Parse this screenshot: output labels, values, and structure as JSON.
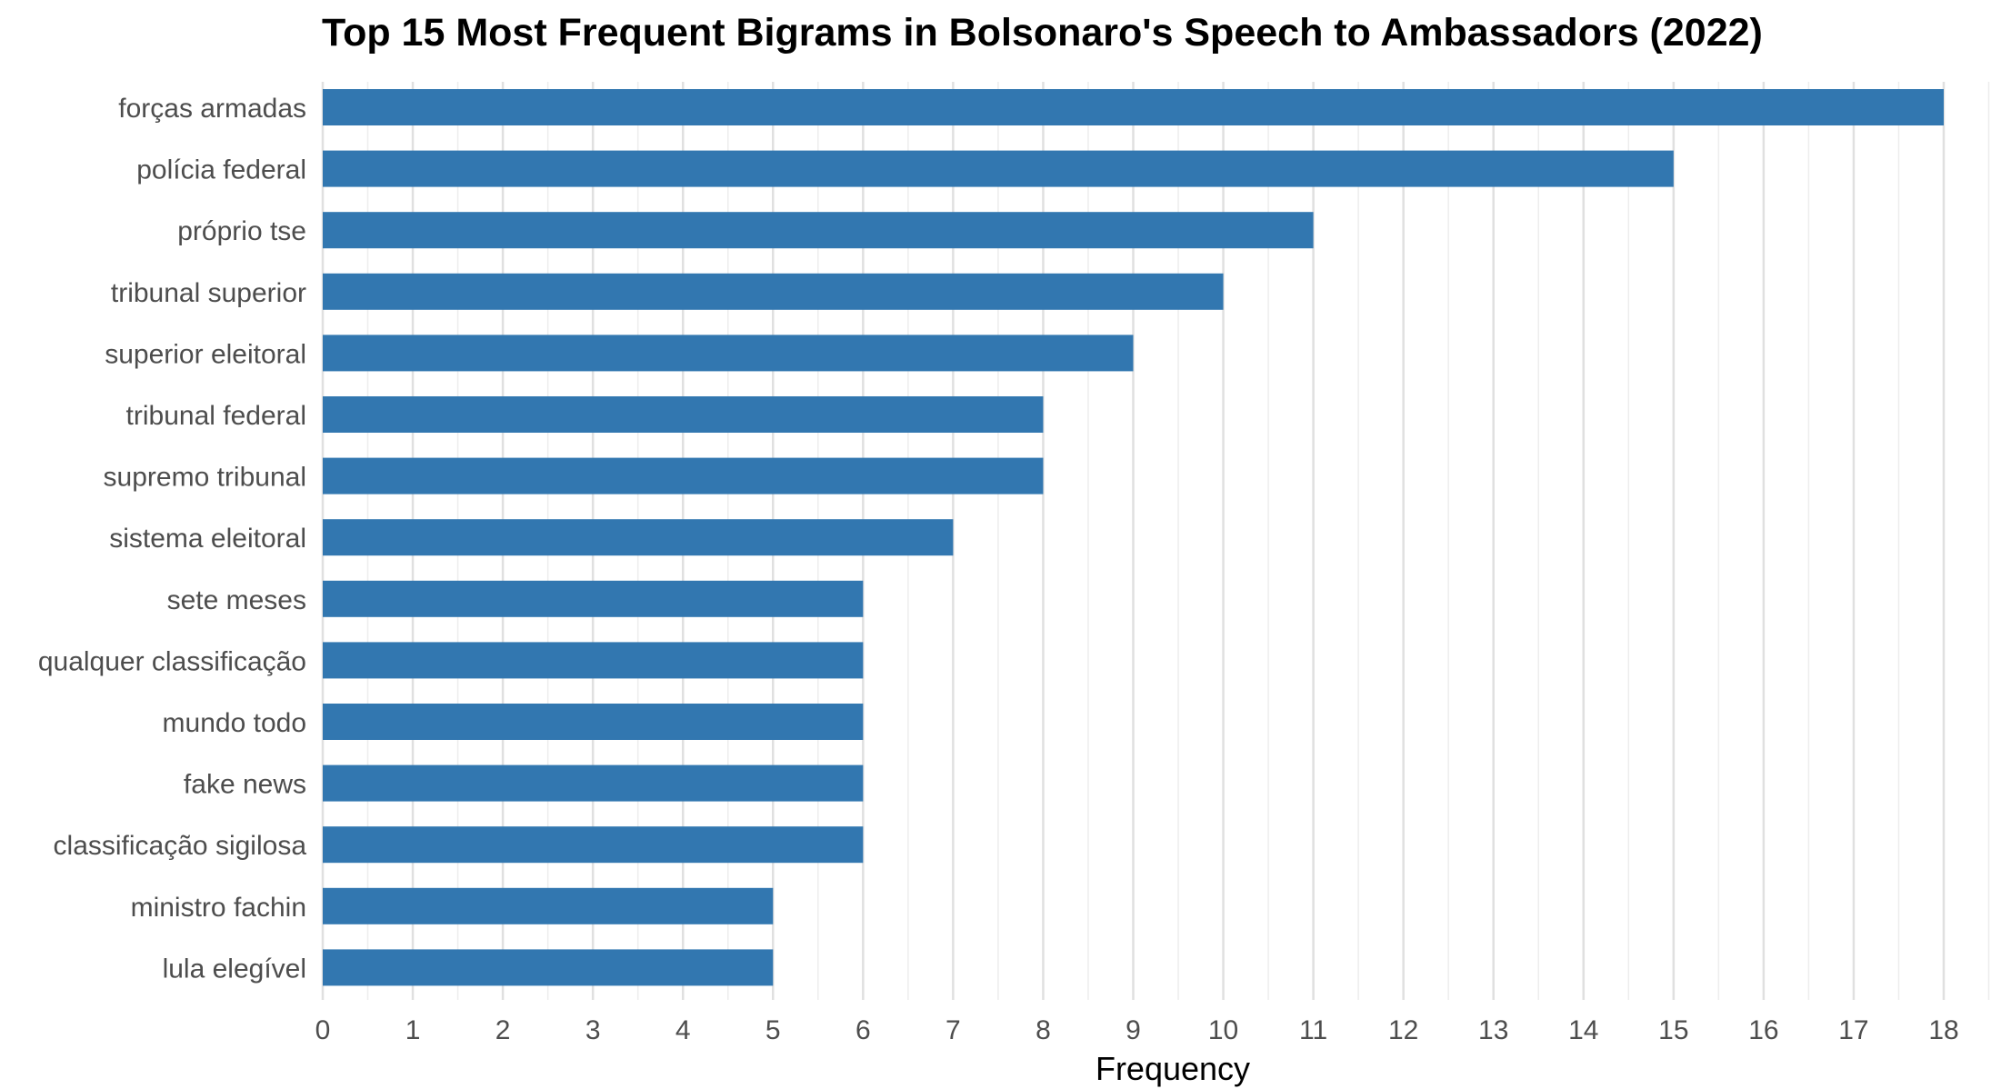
{
  "chart_data": {
    "type": "bar",
    "orientation": "horizontal",
    "title": "Top 15 Most Frequent Bigrams in Bolsonaro's Speech to Ambassadors (2022)",
    "xlabel": "Frequency",
    "ylabel": "",
    "xlim": [
      0,
      18
    ],
    "x_ticks": [
      "0",
      "1",
      "2",
      "3",
      "4",
      "5",
      "6",
      "7",
      "8",
      "9",
      "10",
      "11",
      "12",
      "13",
      "14",
      "15",
      "16",
      "17",
      "18"
    ],
    "grid": true,
    "bar_color": "#3277b0",
    "categories": [
      "forças armadas",
      "polícia federal",
      "próprio tse",
      "tribunal superior",
      "superior eleitoral",
      "tribunal federal",
      "supremo tribunal",
      "sistema eleitoral",
      "sete meses",
      "qualquer classificação",
      "mundo todo",
      "fake news",
      "classificação sigilosa",
      "ministro fachin",
      "lula elegível"
    ],
    "values": [
      18,
      15,
      11,
      10,
      9,
      8,
      8,
      7,
      6,
      6,
      6,
      6,
      6,
      5,
      5
    ]
  }
}
